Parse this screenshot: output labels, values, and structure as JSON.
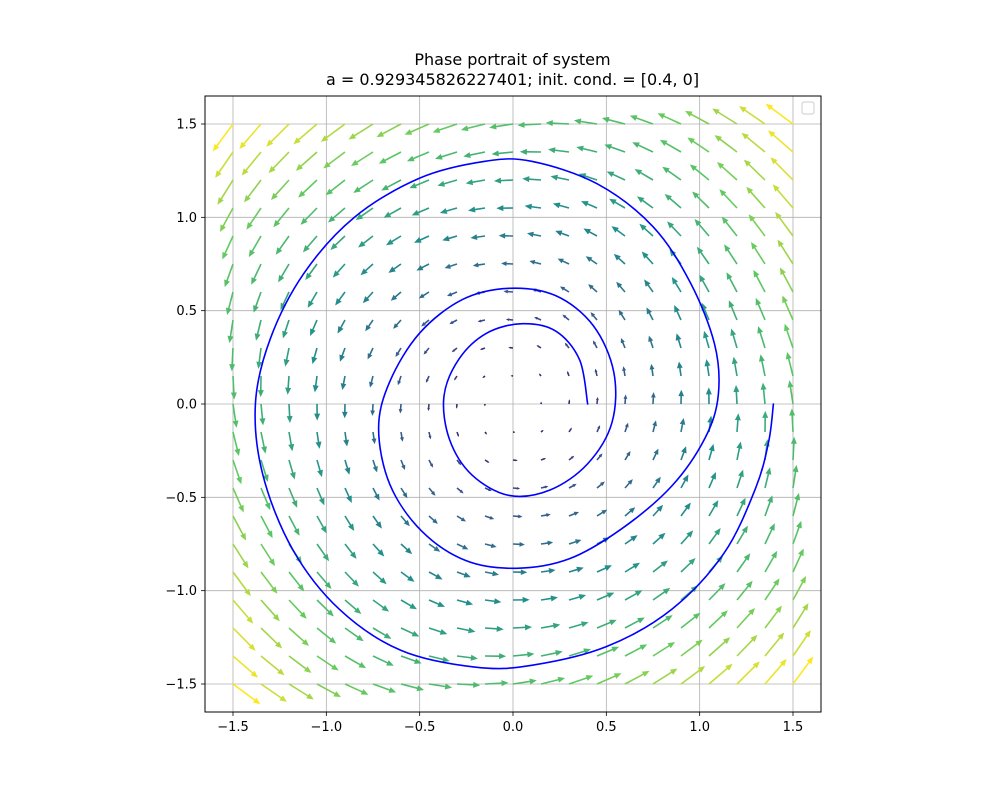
{
  "chart_data": {
    "type": "quiver",
    "title": "Phase portrait of system",
    "subtitle": "a = 0.929345826227401; init. cond. = [0.4, 0]",
    "xlabel": "",
    "ylabel": "",
    "xlim": [
      -1.65,
      1.65
    ],
    "ylim": [
      -1.65,
      1.65
    ],
    "x_ticks": [
      -1.5,
      -1.0,
      -0.5,
      0.0,
      0.5,
      1.0,
      1.5
    ],
    "y_ticks": [
      -1.5,
      -1.0,
      -0.5,
      0.0,
      0.5,
      1.0,
      1.5
    ],
    "x_tick_labels": [
      "−1.5",
      "−1.0",
      "−0.5",
      "0.0",
      "0.5",
      "1.0",
      "1.5"
    ],
    "y_tick_labels": [
      "−1.5",
      "−1.0",
      "−0.5",
      "0.0",
      "0.5",
      "1.0",
      "1.5"
    ],
    "grid": true,
    "legend": {
      "placement": "upper right",
      "entries": []
    },
    "vector_field": {
      "grid_range": [
        -1.5,
        1.5
      ],
      "grid_count": 21,
      "colormap": "viridis",
      "colormap_stops": [
        "#440154",
        "#3b528b",
        "#21918c",
        "#5ec962",
        "#fde725"
      ]
    },
    "trajectory": {
      "color": "#0000ff",
      "initial_condition": [
        0.4,
        0
      ],
      "points": [
        [
          0.4,
          0.0
        ],
        [
          0.357,
          0.236
        ],
        [
          0.23,
          0.39
        ],
        [
          0.05,
          0.43
        ],
        [
          -0.14,
          0.38
        ],
        [
          -0.29,
          0.24
        ],
        [
          -0.37,
          0.04
        ],
        [
          -0.34,
          -0.19
        ],
        [
          -0.22,
          -0.38
        ],
        [
          -0.02,
          -0.49
        ],
        [
          0.2,
          -0.46
        ],
        [
          0.4,
          -0.32
        ],
        [
          0.53,
          -0.1
        ],
        [
          0.54,
          0.17
        ],
        [
          0.43,
          0.42
        ],
        [
          0.23,
          0.58
        ],
        [
          -0.02,
          0.62
        ],
        [
          -0.27,
          0.56
        ],
        [
          -0.5,
          0.38
        ],
        [
          -0.66,
          0.12
        ],
        [
          -0.72,
          -0.13
        ],
        [
          -0.66,
          -0.43
        ],
        [
          -0.49,
          -0.68
        ],
        [
          -0.25,
          -0.84
        ],
        [
          0.02,
          -0.88
        ],
        [
          0.3,
          -0.83
        ],
        [
          0.58,
          -0.67
        ],
        [
          0.85,
          -0.44
        ],
        [
          1.03,
          -0.18
        ],
        [
          1.1,
          0.05
        ],
        [
          1.08,
          0.32
        ],
        [
          0.95,
          0.65
        ],
        [
          0.75,
          0.95
        ],
        [
          0.45,
          1.18
        ],
        [
          0.1,
          1.3
        ],
        [
          -0.15,
          1.3
        ],
        [
          -0.5,
          1.21
        ],
        [
          -0.85,
          1.0
        ],
        [
          -1.12,
          0.7
        ],
        [
          -1.3,
          0.35
        ],
        [
          -1.38,
          0.0
        ],
        [
          -1.34,
          -0.38
        ],
        [
          -1.18,
          -0.78
        ],
        [
          -0.93,
          -1.1
        ],
        [
          -0.6,
          -1.32
        ],
        [
          -0.2,
          -1.41
        ],
        [
          0.1,
          -1.4
        ],
        [
          0.5,
          -1.3
        ],
        [
          0.85,
          -1.1
        ],
        [
          1.13,
          -0.8
        ],
        [
          1.3,
          -0.45
        ],
        [
          1.37,
          -0.2
        ],
        [
          1.395,
          0.0
        ]
      ]
    }
  }
}
